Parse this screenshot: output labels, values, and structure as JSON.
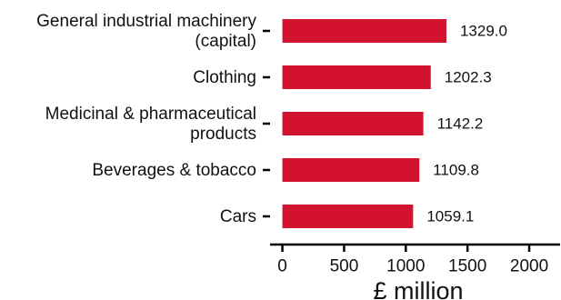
{
  "chart_data": {
    "type": "bar",
    "orientation": "horizontal",
    "categories": [
      [
        "General industrial machinery",
        "(capital)"
      ],
      [
        "Clothing"
      ],
      [
        "Medicinal & pharmaceutical",
        "products"
      ],
      [
        "Beverages & tobacco"
      ],
      [
        "Cars"
      ]
    ],
    "values": [
      1329.0,
      1202.3,
      1142.2,
      1109.8,
      1059.1
    ],
    "value_labels": [
      "1329.0",
      "1202.3",
      "1142.2",
      "1109.8",
      "1059.1"
    ],
    "xlabel": "£ million",
    "xlim": [
      -100,
      2250
    ],
    "xticks": [
      0,
      500,
      1000,
      1500,
      2000
    ],
    "xtick_labels": [
      "0",
      "500",
      "1000",
      "1500",
      "2000"
    ],
    "bar_color": "#d2122e",
    "grid": false,
    "legend": "none"
  }
}
